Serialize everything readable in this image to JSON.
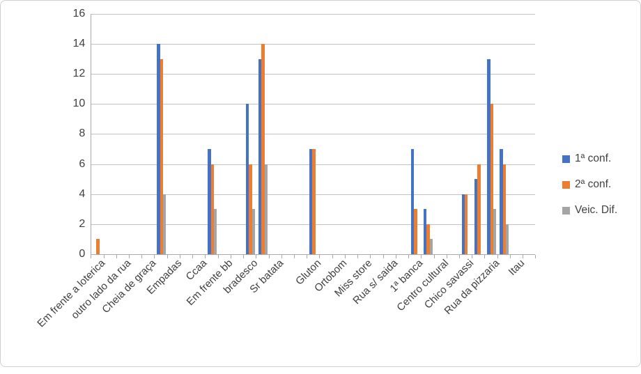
{
  "chart_data": {
    "type": "bar",
    "title": "",
    "y_axis": {
      "min": 0,
      "max": 16,
      "step": 2,
      "tick_labels": [
        "0",
        "2",
        "4",
        "6",
        "8",
        "10",
        "12",
        "14",
        "16"
      ]
    },
    "x_axis": {
      "total_slots": 35,
      "labels": [
        "Em frente a loterica",
        "outro lado da rua",
        "Cheia de graça",
        "Empadas",
        "Ccaa",
        "Em frente bb",
        "bradesco",
        "Sr batata",
        "Gluton",
        "Ortobom",
        "Miss store",
        "Rua s/ saida",
        "1ª banca",
        "Centro cultural",
        "Chico savassi",
        "Rua da pizzaria",
        "Itau"
      ],
      "label_slots": [
        0,
        2,
        4,
        6,
        8,
        10,
        12,
        14,
        17,
        19,
        21,
        23,
        25,
        27,
        29,
        31,
        33
      ]
    },
    "series": [
      {
        "name": "1ª conf.",
        "color": "#4472C4",
        "values_by_slot": [
          0,
          0,
          0,
          0,
          0,
          14,
          0,
          0,
          0,
          7,
          0,
          0,
          10,
          13,
          0,
          0,
          0,
          7,
          0,
          0,
          0,
          0,
          0,
          0,
          0,
          7,
          3,
          0,
          0,
          4,
          5,
          13,
          7,
          0,
          0
        ]
      },
      {
        "name": "2ª conf.",
        "color": "#ED7D31",
        "values_by_slot": [
          1,
          0,
          0,
          0,
          0,
          13,
          0,
          0,
          0,
          6,
          0,
          0,
          6,
          14,
          0,
          0,
          0,
          7,
          0,
          0,
          0,
          0,
          0,
          0,
          0,
          3,
          2,
          0,
          0,
          4,
          6,
          10,
          6,
          0,
          0
        ]
      },
      {
        "name": "Veic. Dif.",
        "color": "#A5A5A5",
        "values_by_slot": [
          0,
          0,
          0,
          0,
          0,
          4,
          0,
          0,
          0,
          3,
          0,
          0,
          3,
          6,
          0,
          0,
          0,
          0,
          0,
          0,
          0,
          0,
          0,
          0,
          0,
          0,
          1,
          0,
          0,
          0,
          0,
          3,
          2,
          0,
          0
        ]
      }
    ],
    "visible_groups": [
      {
        "slot": 0,
        "values": [
          0,
          1,
          0
        ]
      },
      {
        "slot": 5,
        "values": [
          14,
          13,
          4
        ]
      },
      {
        "slot": 9,
        "values": [
          7,
          6,
          3
        ]
      },
      {
        "slot": 12,
        "values": [
          10,
          6,
          3
        ]
      },
      {
        "slot": 13,
        "values": [
          13,
          14,
          6
        ]
      },
      {
        "slot": 17,
        "values": [
          7,
          7,
          0
        ]
      },
      {
        "slot": 25,
        "values": [
          7,
          3,
          0
        ]
      },
      {
        "slot": 26,
        "values": [
          3,
          2,
          1
        ]
      },
      {
        "slot": 29,
        "values": [
          4,
          4,
          0
        ]
      },
      {
        "slot": 30,
        "values": [
          5,
          6,
          0
        ]
      },
      {
        "slot": 31,
        "values": [
          13,
          10,
          3
        ]
      },
      {
        "slot": 32,
        "values": [
          7,
          6,
          2
        ]
      }
    ],
    "legend": {
      "position": "right",
      "entries": [
        "1ª conf.",
        "2ª conf.",
        "Veic. Dif."
      ]
    },
    "grid": true,
    "colors": {
      "gridline": "#c2c2c2",
      "axis": "#a9a9a9",
      "text": "#404040",
      "border": "#cfcfcf"
    }
  }
}
